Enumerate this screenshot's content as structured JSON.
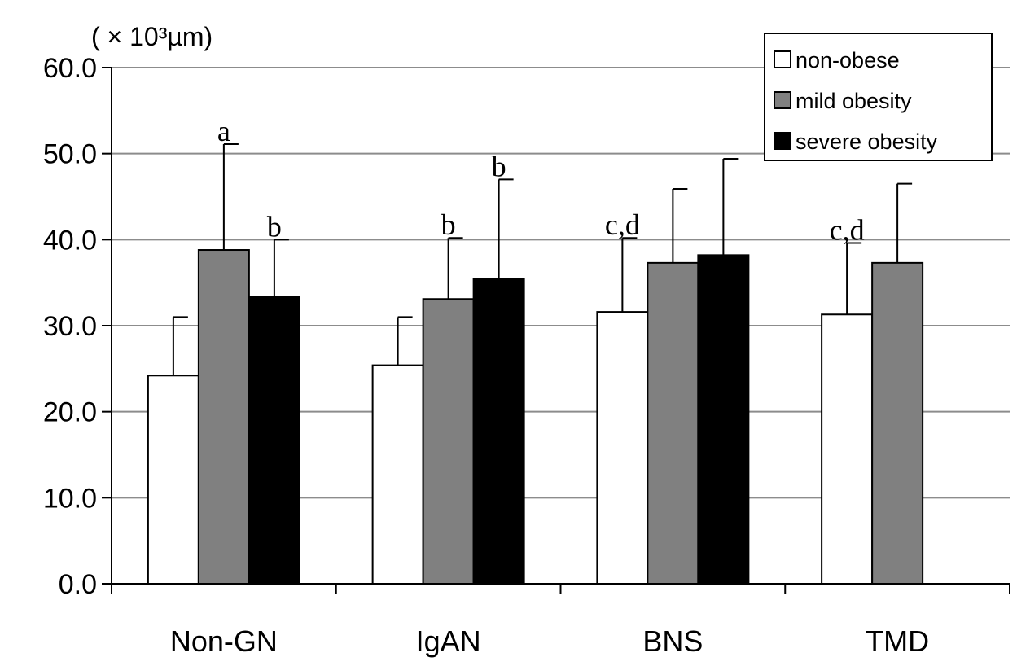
{
  "chart_data": {
    "type": "bar",
    "ylabel": "( × 10³µm)",
    "ylim": [
      0,
      60
    ],
    "yticks": [
      {
        "value": 0,
        "label": "0.0"
      },
      {
        "value": 10,
        "label": "10.0"
      },
      {
        "value": 20,
        "label": "20.0"
      },
      {
        "value": 30,
        "label": "30.0"
      },
      {
        "value": 40,
        "label": "40.0"
      },
      {
        "value": 50,
        "label": "50.0"
      },
      {
        "value": 60,
        "label": "60.0"
      }
    ],
    "grid": true,
    "legend_position": "top-right",
    "categories": [
      "Non-GN",
      "IgAN",
      "BNS",
      "TMD"
    ],
    "series": [
      {
        "name": "non-obese",
        "color": "#ffffff",
        "values": [
          24.2,
          25.4,
          31.6,
          31.3
        ],
        "errors": [
          6.8,
          5.6,
          8.6,
          8.3
        ]
      },
      {
        "name": "mild obesity",
        "color": "#808080",
        "values": [
          38.8,
          33.1,
          37.3,
          37.3
        ],
        "errors": [
          12.3,
          7.1,
          8.6,
          9.2
        ]
      },
      {
        "name": "severe obesity",
        "color": "#000000",
        "values": [
          33.4,
          35.4,
          38.2,
          null
        ],
        "errors": [
          6.6,
          11.6,
          11.2,
          null
        ]
      }
    ],
    "annotations": [
      {
        "category": 0,
        "series": 1,
        "text": "a"
      },
      {
        "category": 0,
        "series": 2,
        "text": "b"
      },
      {
        "category": 1,
        "series": 1,
        "text": "b"
      },
      {
        "category": 1,
        "series": 2,
        "text": "b"
      },
      {
        "category": 2,
        "series": 0,
        "text": "c,d"
      },
      {
        "category": 3,
        "series": 0,
        "text": "c,d"
      }
    ]
  }
}
